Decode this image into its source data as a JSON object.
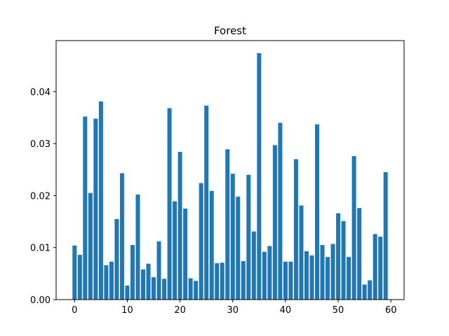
{
  "chart_data": {
    "type": "bar",
    "title": "Forest",
    "xlabel": "",
    "ylabel": "",
    "x": [
      0,
      1,
      2,
      3,
      4,
      5,
      6,
      7,
      8,
      9,
      10,
      11,
      12,
      13,
      14,
      15,
      16,
      17,
      18,
      19,
      20,
      21,
      22,
      23,
      24,
      25,
      26,
      27,
      28,
      29,
      30,
      31,
      32,
      33,
      34,
      35,
      36,
      37,
      38,
      39,
      40,
      41,
      42,
      43,
      44,
      45,
      46,
      47,
      48,
      49,
      50,
      51,
      52,
      53,
      54,
      55,
      56,
      57,
      58,
      59
    ],
    "values": [
      0.0104,
      0.0086,
      0.0352,
      0.0205,
      0.0348,
      0.0381,
      0.0066,
      0.0073,
      0.0155,
      0.0243,
      0.0027,
      0.0105,
      0.0202,
      0.0058,
      0.0069,
      0.0043,
      0.0112,
      0.004,
      0.0368,
      0.0189,
      0.0284,
      0.0175,
      0.0041,
      0.0036,
      0.0224,
      0.0373,
      0.0209,
      0.007,
      0.0071,
      0.0289,
      0.0242,
      0.0198,
      0.0074,
      0.024,
      0.0131,
      0.0474,
      0.0092,
      0.0103,
      0.0297,
      0.034,
      0.0073,
      0.0073,
      0.027,
      0.0181,
      0.0093,
      0.0085,
      0.0337,
      0.0105,
      0.0082,
      0.0107,
      0.0166,
      0.0151,
      0.0082,
      0.0276,
      0.0176,
      0.0029,
      0.0037,
      0.0126,
      0.0121,
      0.0245
    ],
    "xlim": [
      -3.5,
      62.5
    ],
    "ylim": [
      0,
      0.0498
    ],
    "xticks": [
      0,
      10,
      20,
      30,
      40,
      50,
      60
    ],
    "xtick_labels": [
      "0",
      "10",
      "20",
      "30",
      "40",
      "50",
      "60"
    ],
    "yticks": [
      0.0,
      0.01,
      0.02,
      0.03,
      0.04
    ],
    "ytick_labels": [
      "0.00",
      "0.01",
      "0.02",
      "0.03",
      "0.04"
    ],
    "bar_color": "#1f77b4",
    "grid": false,
    "legend": "none"
  }
}
